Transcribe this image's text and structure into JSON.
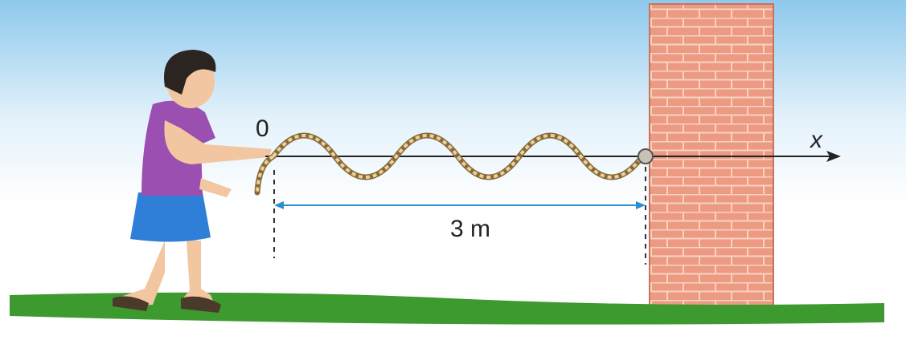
{
  "labels": {
    "origin": "0",
    "axis": "x",
    "distance": "3 m"
  }
}
